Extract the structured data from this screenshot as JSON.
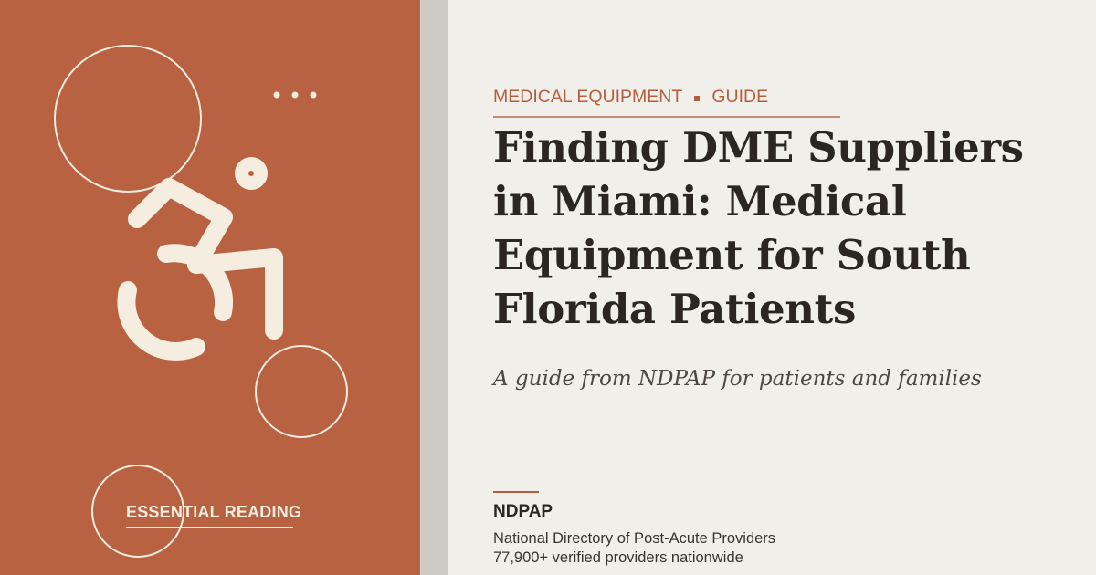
{
  "card": {
    "category": "MEDICAL EQUIPMENT",
    "category_secondary": "GUIDE",
    "headline": "Finding DME Suppliers in Miami: Medical Equipment for South Florida Patients",
    "subtitle": "A guide from NDPAP for patients and families",
    "badge": "ESSENTIAL READING"
  },
  "brand": {
    "name": "NDPAP",
    "full_name": "National Directory of Post-Acute Providers",
    "tagline": "77,900+ verified providers nationwide"
  },
  "colors": {
    "accent": "#B86242",
    "cream": "#F4EDE0",
    "background": "#F1EFEA",
    "divider": "#CECBC2",
    "headline": "#2B2622"
  },
  "icons": [
    "accessible-wheelchair-icon",
    "more-dots-icon"
  ]
}
